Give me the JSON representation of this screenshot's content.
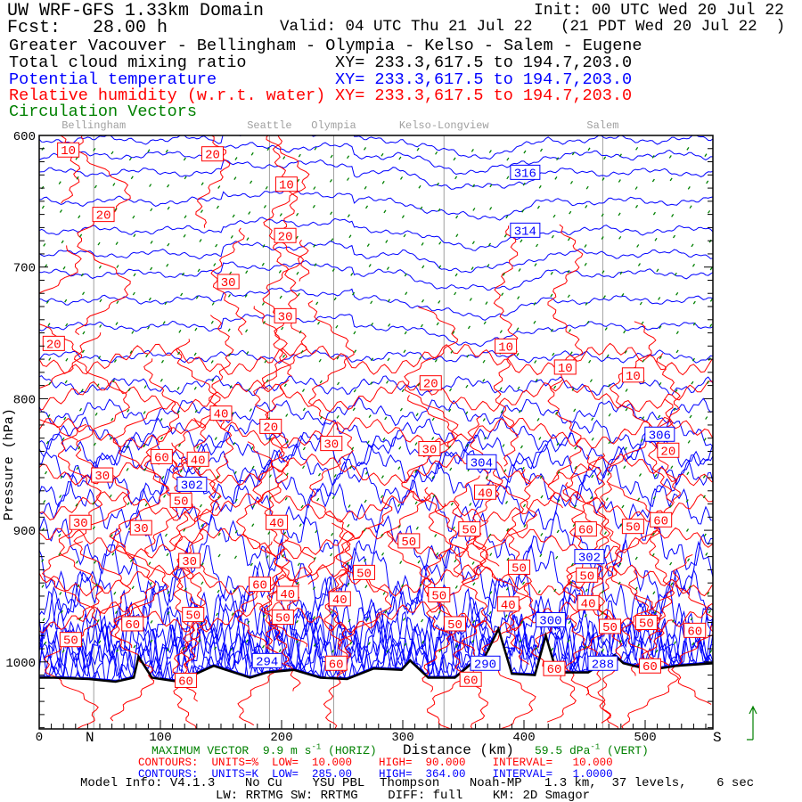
{
  "header": {
    "domain": "UW WRF-GFS 1.33km Domain",
    "init": "Init: 00 UTC Wed 20 Jul 22",
    "fcst": "Fcst:   28.00 h",
    "valid": "Valid: 04 UTC Thu 21 Jul 22   (21 PDT Wed 20 Jul 22  )",
    "route": "Greater Vacouver - Bellingham - Olympia - Kelso - Salem - Eugene",
    "field1": "Total cloud mixing ratio",
    "field1_xy": "XY= 233.3,617.5 to 194.7,203.0",
    "field2": "Potential temperature",
    "field2_xy": "XY= 233.3,617.5 to 194.7,203.0",
    "field3": "Relative humidity (w.r.t. water)",
    "field3_xy": "XY= 233.3,617.5 to 194.7,203.0",
    "field4": "Circulation Vectors"
  },
  "footer": {
    "max_vector": "MAXIMUM VECTOR",
    "horiz": "9.9 m s",
    "horiz_exp": "-1",
    "horiz_tag": "(HORIZ)",
    "vert": "59.5 dPa",
    "vert_exp": "-1",
    "vert_tag": "(VERT)",
    "north": "N",
    "south": "S",
    "xlabel": "Distance (km)",
    "rh_contours": "CONTOURS:  UNITS=%  LOW=  10.000    HIGH=  90.000    INTERVAL=   10.000",
    "th_contours": "CONTOURS:  UNITS=K  LOW=  285.00    HIGH=  364.00    INTERVAL=   1.0000",
    "model_info": "Model Info: V4.1.3    No Cu    YSU PBL  Thompson    Noah-MP   1.3 km,  37 levels,    6 sec",
    "model_info2": "LW: RRTMG SW: RRTMG    DIFF: full    KM: 2D Smagor"
  },
  "chart_data": {
    "type": "contour-cross-section",
    "xlabel": "Distance (km)",
    "ylabel": "Pressure (hPa)",
    "xlim": [
      0,
      556
    ],
    "ylim": [
      1050,
      600
    ],
    "x_ticks": [
      "0",
      "100",
      "200",
      "300",
      "400",
      "500"
    ],
    "y_ticks": [
      "600",
      "700",
      "800",
      "900",
      "1000"
    ],
    "cities": [
      {
        "name": "Bellingham",
        "km": 45
      },
      {
        "name": "Seattle",
        "km": 190
      },
      {
        "name": "Olympia",
        "km": 243
      },
      {
        "name": "Kelso-Longview",
        "km": 334
      },
      {
        "name": "Salem",
        "km": 465
      }
    ],
    "colors": {
      "theta": "#0000ff",
      "rh": "#ff0000",
      "vectors": "#008000",
      "terrain": "#000000",
      "city_lines": "#a0a0a0"
    },
    "terrain": [
      [
        0,
        1012
      ],
      [
        12,
        1012
      ],
      [
        41,
        1013
      ],
      [
        63,
        1015
      ],
      [
        78,
        1012
      ],
      [
        82,
        996
      ],
      [
        93,
        1012
      ],
      [
        115,
        1015
      ],
      [
        144,
        1003
      ],
      [
        174,
        1012
      ],
      [
        188,
        1008
      ],
      [
        210,
        1006
      ],
      [
        232,
        1012
      ],
      [
        254,
        1013
      ],
      [
        276,
        1005
      ],
      [
        299,
        1006
      ],
      [
        306,
        999
      ],
      [
        321,
        1012
      ],
      [
        343,
        1012
      ],
      [
        357,
        1001
      ],
      [
        365,
        1001
      ],
      [
        379,
        975
      ],
      [
        390,
        1009
      ],
      [
        409,
        1010
      ],
      [
        418,
        980
      ],
      [
        427,
        1008
      ],
      [
        453,
        1008
      ],
      [
        475,
        995
      ],
      [
        482,
        1001
      ],
      [
        504,
        1006
      ],
      [
        526,
        1003
      ],
      [
        556,
        1001
      ]
    ],
    "theta_profile": [
      [
        318,
        603
      ],
      [
        317,
        615
      ],
      [
        316,
        628
      ],
      [
        315,
        650
      ],
      [
        314,
        672
      ],
      [
        313,
        690
      ],
      [
        312,
        705
      ],
      [
        311,
        725
      ],
      [
        310,
        745
      ],
      [
        309,
        768
      ],
      [
        308,
        790
      ],
      [
        307,
        810
      ],
      [
        306,
        827
      ],
      [
        305,
        840
      ],
      [
        304,
        850
      ],
      [
        303,
        865
      ],
      [
        302,
        882
      ],
      [
        301,
        910
      ],
      [
        300,
        935
      ],
      [
        299,
        955
      ],
      [
        298,
        968
      ],
      [
        297,
        978
      ],
      [
        296,
        986
      ],
      [
        295,
        991
      ],
      [
        294,
        995
      ],
      [
        292,
        998
      ],
      [
        290,
        1001
      ],
      [
        288,
        1003
      ],
      [
        286,
        1005
      ]
    ],
    "theta_labels": [
      {
        "text": "316",
        "km": 401,
        "hPa": 628
      },
      {
        "text": "314",
        "km": 401,
        "hPa": 672
      },
      {
        "text": "306",
        "km": 512,
        "hPa": 827
      },
      {
        "text": "304",
        "km": 365,
        "hPa": 848
      },
      {
        "text": "302",
        "km": 126,
        "hPa": 865
      },
      {
        "text": "302",
        "km": 454,
        "hPa": 920
      },
      {
        "text": "300",
        "km": 422,
        "hPa": 968
      },
      {
        "text": "294",
        "km": 188,
        "hPa": 999
      },
      {
        "text": "290",
        "km": 368,
        "hPa": 1001
      },
      {
        "text": "288",
        "km": 465,
        "hPa": 1001
      }
    ],
    "rh_labels": [
      {
        "text": "10",
        "km": 24,
        "hPa": 611
      },
      {
        "text": "20",
        "km": 143,
        "hPa": 614
      },
      {
        "text": "10",
        "km": 204,
        "hPa": 637
      },
      {
        "text": "20",
        "km": 53,
        "hPa": 660
      },
      {
        "text": "20",
        "km": 203,
        "hPa": 676
      },
      {
        "text": "30",
        "km": 156,
        "hPa": 711
      },
      {
        "text": "30",
        "km": 203,
        "hPa": 737
      },
      {
        "text": "20",
        "km": 12,
        "hPa": 758
      },
      {
        "text": "10",
        "km": 385,
        "hPa": 760
      },
      {
        "text": "10",
        "km": 434,
        "hPa": 776
      },
      {
        "text": "10",
        "km": 490,
        "hPa": 782
      },
      {
        "text": "20",
        "km": 323,
        "hPa": 788
      },
      {
        "text": "40",
        "km": 150,
        "hPa": 811
      },
      {
        "text": "20",
        "km": 191,
        "hPa": 821
      },
      {
        "text": "30",
        "km": 241,
        "hPa": 834
      },
      {
        "text": "30",
        "km": 322,
        "hPa": 838
      },
      {
        "text": "20",
        "km": 519,
        "hPa": 823
      },
      {
        "text": "60",
        "km": 101,
        "hPa": 844
      },
      {
        "text": "40",
        "km": 131,
        "hPa": 846
      },
      {
        "text": "30",
        "km": 52,
        "hPa": 858
      },
      {
        "text": "50",
        "km": 117,
        "hPa": 874
      },
      {
        "text": "40",
        "km": 368,
        "hPa": 871
      },
      {
        "text": "30",
        "km": 34,
        "hPa": 894
      },
      {
        "text": "30",
        "km": 84,
        "hPa": 898
      },
      {
        "text": "40",
        "km": 196,
        "hPa": 894
      },
      {
        "text": "50",
        "km": 355,
        "hPa": 899
      },
      {
        "text": "60",
        "km": 451,
        "hPa": 899
      },
      {
        "text": "50",
        "km": 490,
        "hPa": 897
      },
      {
        "text": "60",
        "km": 513,
        "hPa": 892
      },
      {
        "text": "30",
        "km": 124,
        "hPa": 923
      },
      {
        "text": "50",
        "km": 305,
        "hPa": 908
      },
      {
        "text": "50",
        "km": 268,
        "hPa": 932
      },
      {
        "text": "50",
        "km": 396,
        "hPa": 928
      },
      {
        "text": "50",
        "km": 452,
        "hPa": 934
      },
      {
        "text": "60",
        "km": 182,
        "hPa": 941
      },
      {
        "text": "40",
        "km": 205,
        "hPa": 948
      },
      {
        "text": "40",
        "km": 248,
        "hPa": 952
      },
      {
        "text": "50",
        "km": 330,
        "hPa": 949
      },
      {
        "text": "40",
        "km": 453,
        "hPa": 955
      },
      {
        "text": "40",
        "km": 387,
        "hPa": 956
      },
      {
        "text": "50",
        "km": 127,
        "hPa": 964
      },
      {
        "text": "50",
        "km": 201,
        "hPa": 966
      },
      {
        "text": "60",
        "km": 77,
        "hPa": 971
      },
      {
        "text": "50",
        "km": 343,
        "hPa": 971
      },
      {
        "text": "50",
        "km": 471,
        "hPa": 973
      },
      {
        "text": "50",
        "km": 501,
        "hPa": 970
      },
      {
        "text": "60",
        "km": 541,
        "hPa": 976
      },
      {
        "text": "50",
        "km": 26,
        "hPa": 983
      },
      {
        "text": "60",
        "km": 121,
        "hPa": 1014
      },
      {
        "text": "60",
        "km": 356,
        "hPa": 1001
      },
      {
        "text": "60",
        "km": 425,
        "hPa": 1005
      },
      {
        "text": "60",
        "km": 504,
        "hPa": 1003
      },
      {
        "text": "60",
        "km": 245,
        "hPa": 1001
      }
    ]
  }
}
